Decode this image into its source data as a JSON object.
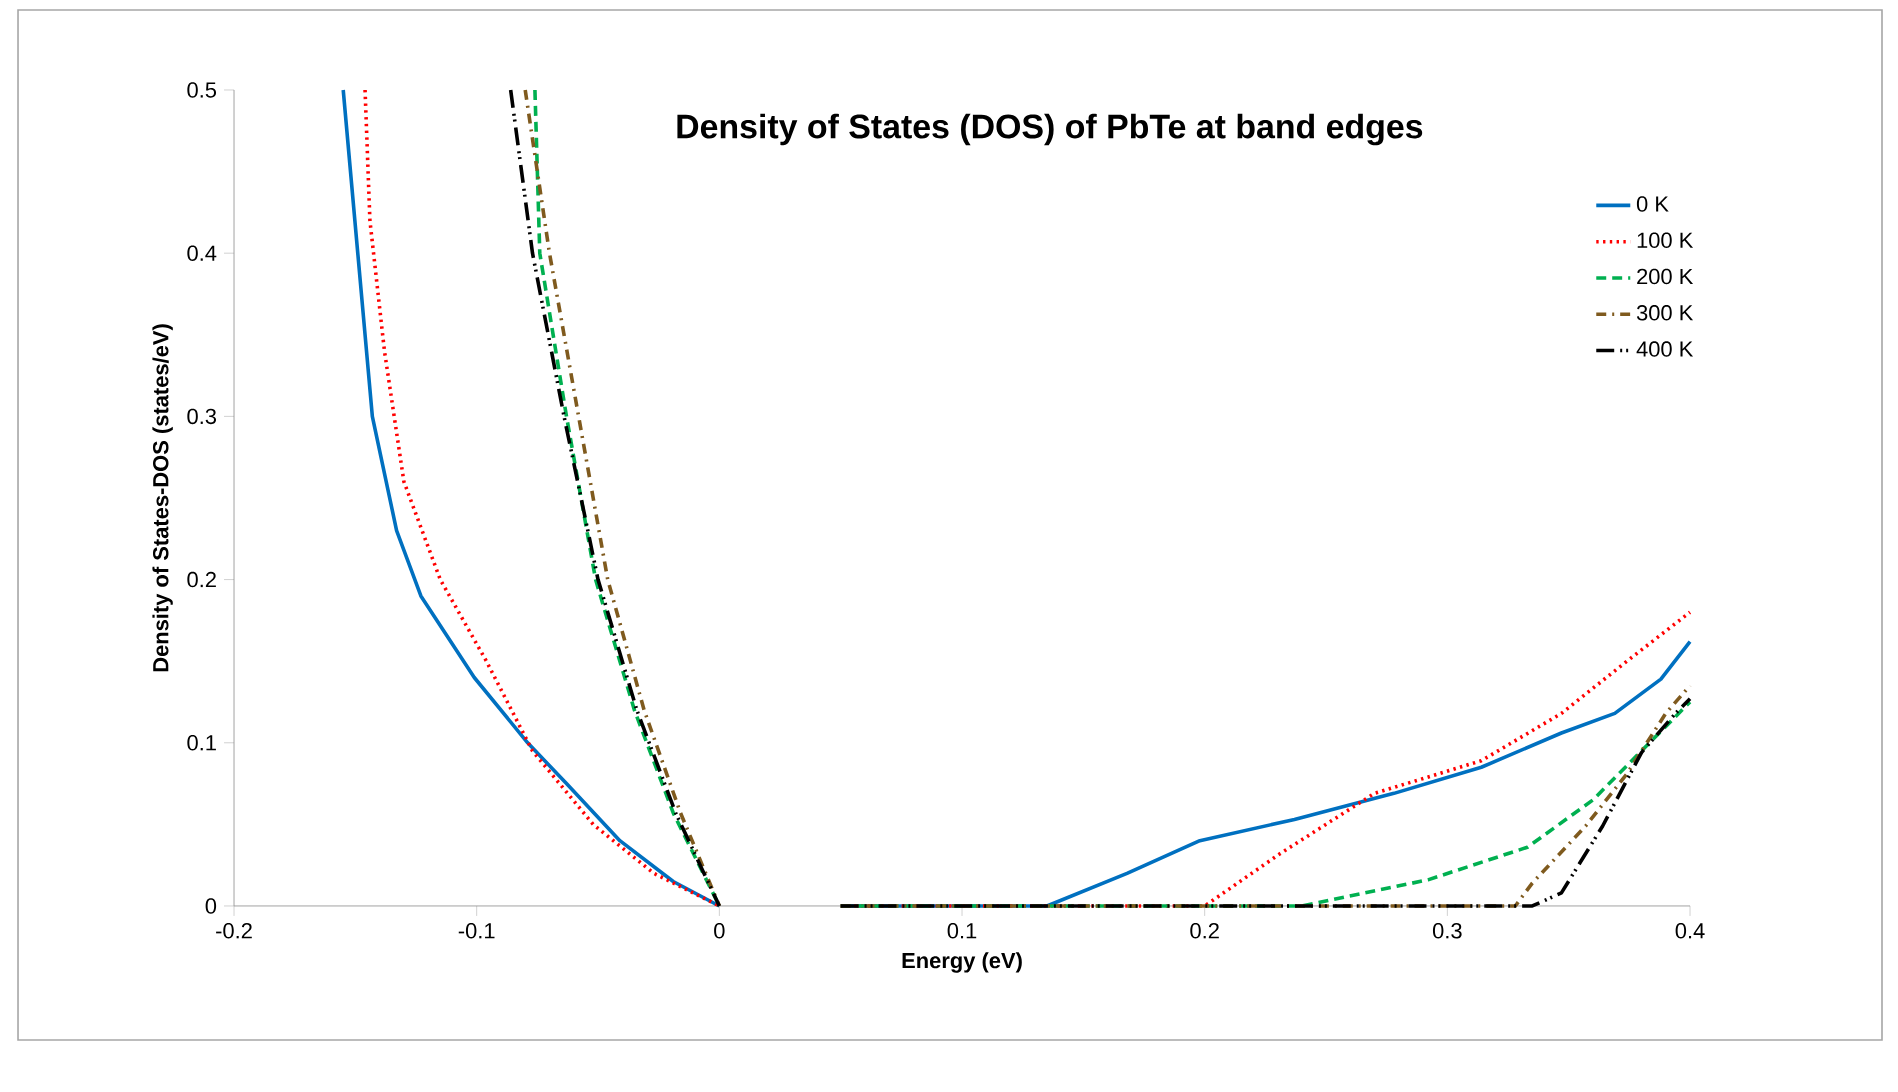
{
  "chart_data": {
    "type": "line",
    "title": "Density of States (DOS) of PbTe at band edges",
    "xlabel": "Energy (eV)",
    "ylabel": "Density of States-DOS  (states/eV)",
    "xlim": [
      -0.2,
      0.4
    ],
    "ylim": [
      0,
      0.5
    ],
    "xticks": [
      -0.2,
      -0.1,
      0,
      0.1,
      0.2,
      0.3,
      0.4
    ],
    "yticks": [
      0,
      0.1,
      0.2,
      0.3,
      0.4,
      0.5
    ],
    "grid": false,
    "legend": "top right",
    "marker": "none",
    "series": [
      {
        "name": "0 K",
        "color": "#0070c0",
        "line_style": "solid",
        "x": [
          -0.155,
          -0.143,
          -0.133,
          -0.123,
          -0.101,
          -0.079,
          -0.063,
          -0.041,
          -0.019,
          0,
          0.03,
          0.05,
          0.135,
          0.168,
          0.198,
          0.237,
          0.278,
          0.314,
          0.347,
          0.369,
          0.388,
          0.4
        ],
        "values": [
          0.5,
          0.3,
          0.23,
          0.19,
          0.14,
          0.1,
          0.075,
          0.04,
          0.015,
          0,
          null,
          0,
          0,
          0.02,
          0.04,
          0.053,
          0.069,
          0.085,
          0.106,
          0.118,
          0.139,
          0.162
        ]
      },
      {
        "name": "100 K",
        "color": "#ff0000",
        "line_style": "dotted",
        "x": [
          -0.146,
          -0.144,
          -0.138,
          -0.13,
          -0.115,
          -0.096,
          -0.077,
          -0.052,
          -0.027,
          0,
          0.03,
          0.05,
          0.2,
          0.231,
          0.27,
          0.314,
          0.347,
          0.374,
          0.4
        ],
        "values": [
          0.5,
          0.42,
          0.34,
          0.26,
          0.2,
          0.15,
          0.095,
          0.05,
          0.02,
          0,
          null,
          0,
          0,
          0.032,
          0.069,
          0.089,
          0.118,
          0.15,
          0.18
        ]
      },
      {
        "name": "200 K",
        "color": "#00b050",
        "line_style": "dashed",
        "x": [
          -0.076,
          -0.074,
          -0.063,
          -0.051,
          -0.035,
          -0.019,
          0,
          0.03,
          0.05,
          0.24,
          0.292,
          0.333,
          0.36,
          0.382,
          0.4
        ],
        "values": [
          0.5,
          0.4,
          0.3,
          0.2,
          0.12,
          0.057,
          0,
          null,
          0,
          0,
          0.016,
          0.036,
          0.065,
          0.098,
          0.125
        ]
      },
      {
        "name": "300 K",
        "color": "#7f5a1e",
        "line_style": "dashed",
        "x": [
          -0.08,
          -0.07,
          -0.058,
          -0.046,
          -0.031,
          -0.016,
          0,
          0.03,
          0.05,
          0.328,
          0.335,
          0.357,
          0.374,
          0.39,
          0.4
        ],
        "values": [
          0.5,
          0.4,
          0.3,
          0.2,
          0.12,
          0.057,
          0,
          null,
          0,
          0,
          0.014,
          0.049,
          0.081,
          0.118,
          0.135
        ]
      },
      {
        "name": "400 K",
        "color": "#000000",
        "line_style": "dashed",
        "x": [
          -0.086,
          -0.077,
          -0.064,
          -0.05,
          -0.034,
          -0.018,
          0,
          0.03,
          0.05,
          0.335,
          0.347,
          0.364,
          0.38,
          0.394,
          0.4
        ],
        "values": [
          0.5,
          0.4,
          0.3,
          0.2,
          0.12,
          0.057,
          0,
          null,
          0,
          0,
          0.008,
          0.049,
          0.094,
          0.118,
          0.127
        ]
      }
    ]
  }
}
